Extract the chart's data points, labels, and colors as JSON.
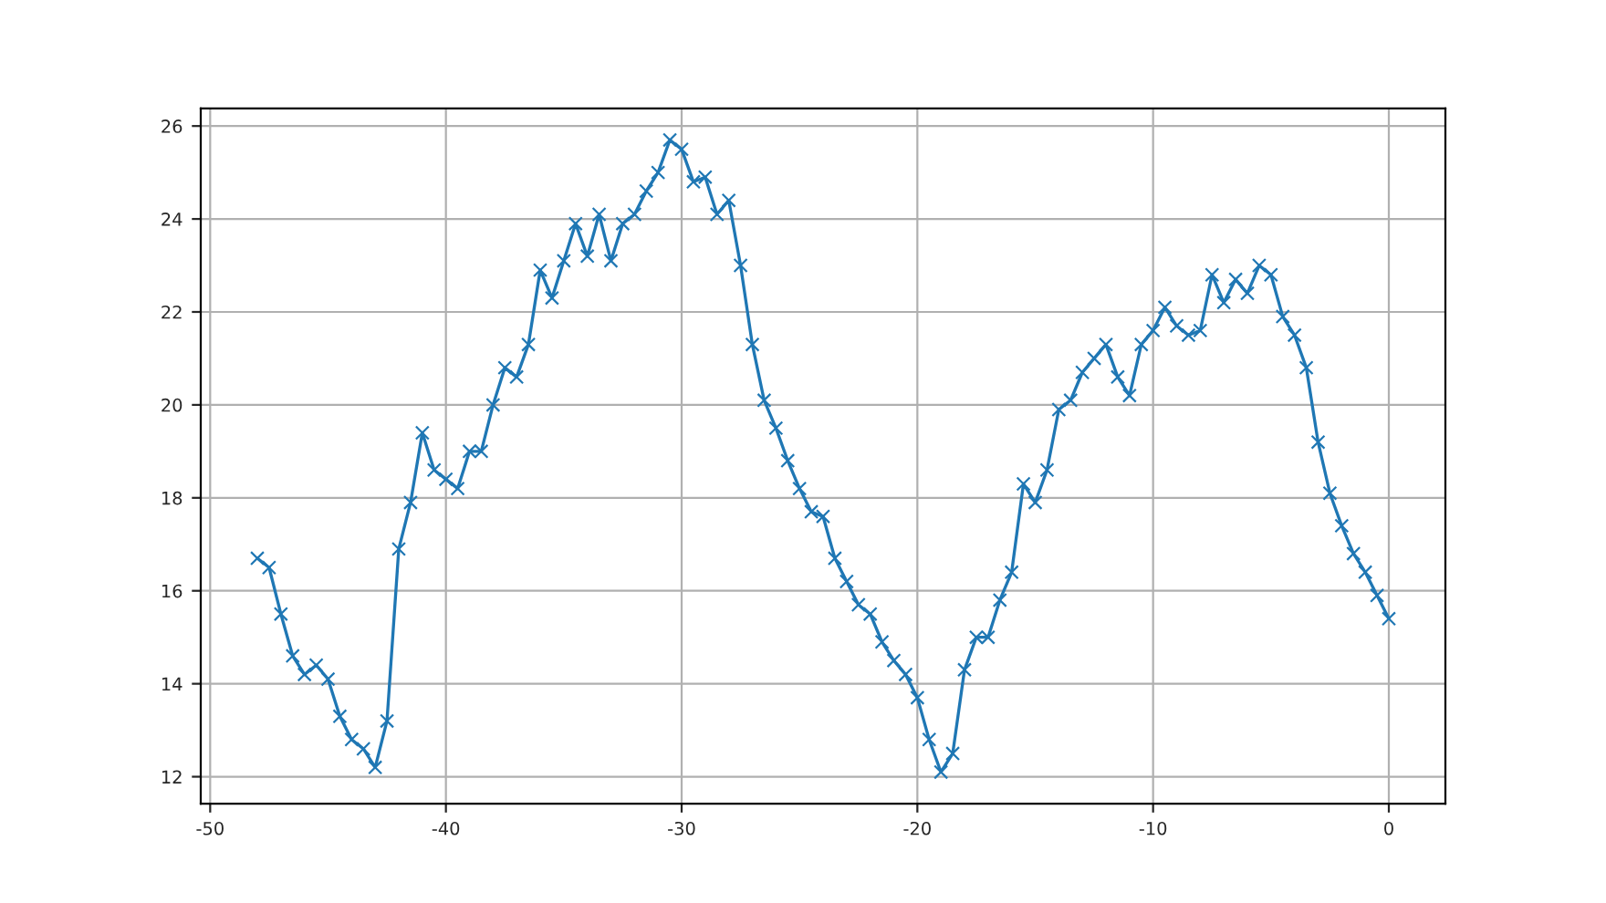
{
  "chart_data": {
    "type": "line",
    "x": [
      -48,
      -47.5,
      -47,
      -46.5,
      -46,
      -45.5,
      -45,
      -44.5,
      -44,
      -43.5,
      -43,
      -42.5,
      -42,
      -41.5,
      -41,
      -40.5,
      -40,
      -39.5,
      -39,
      -38.5,
      -38,
      -37.5,
      -37,
      -36.5,
      -36,
      -35.5,
      -35,
      -34.5,
      -34,
      -33.5,
      -33,
      -32.5,
      -32,
      -31.5,
      -31,
      -30.5,
      -30,
      -29.5,
      -29,
      -28.5,
      -28,
      -27.5,
      -27,
      -26.5,
      -26,
      -25.5,
      -25,
      -24.5,
      -24,
      -23.5,
      -23,
      -22.5,
      -22,
      -21.5,
      -21,
      -20.5,
      -20,
      -19.5,
      -19,
      -18.5,
      -18,
      -17.5,
      -17,
      -16.5,
      -16,
      -15.5,
      -15,
      -14.5,
      -14,
      -13.5,
      -13,
      -12.5,
      -12,
      -11.5,
      -11,
      -10.5,
      -10,
      -9.5,
      -9,
      -8.5,
      -8,
      -7.5,
      -7,
      -6.5,
      -6,
      -5.5,
      -5,
      -4.5,
      -4,
      -3.5,
      -3,
      -2.5,
      -2,
      -1.5,
      -1,
      -0.5,
      0
    ],
    "series": [
      {
        "color": "#1f77b4",
        "values": [
          16.7,
          16.5,
          15.5,
          14.6,
          14.2,
          14.4,
          14.1,
          13.3,
          12.8,
          12.6,
          12.2,
          13.2,
          16.9,
          17.9,
          19.4,
          18.6,
          18.4,
          18.2,
          19.0,
          19.0,
          20.0,
          20.8,
          20.6,
          21.3,
          22.9,
          22.3,
          23.1,
          23.9,
          23.2,
          24.1,
          23.1,
          23.9,
          24.1,
          24.6,
          25.0,
          25.7,
          25.5,
          24.8,
          24.9,
          24.1,
          24.4,
          23.0,
          21.3,
          20.1,
          19.5,
          18.8,
          18.2,
          17.7,
          17.6,
          16.7,
          16.2,
          15.7,
          15.5,
          14.9,
          14.5,
          14.2,
          13.7,
          12.8,
          12.1,
          12.5,
          14.3,
          15.0,
          15.0,
          15.8,
          16.4,
          18.3,
          17.9,
          18.6,
          19.9,
          20.1,
          20.7,
          21.0,
          21.3,
          20.6,
          20.2,
          21.3,
          21.6,
          22.1,
          21.7,
          21.5,
          21.6,
          22.8,
          22.2,
          22.7,
          22.4,
          23.0,
          22.8,
          21.9,
          21.5,
          20.8,
          19.2,
          18.1,
          17.4,
          16.8,
          16.4,
          15.9,
          15.4
        ]
      }
    ],
    "xlim": [
      -50.4,
      2.4
    ],
    "ylim": [
      11.42,
      26.38
    ],
    "xticks": [
      -50,
      -40,
      -30,
      -20,
      -10,
      0
    ],
    "yticks": [
      12,
      14,
      16,
      18,
      20,
      22,
      24,
      26
    ],
    "grid": true,
    "marker": "cross",
    "line_style": "solid"
  }
}
